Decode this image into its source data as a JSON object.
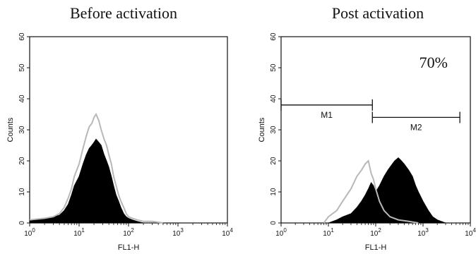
{
  "chart_data": [
    {
      "type": "area",
      "title": "Before activation",
      "xlabel": "FL1-H",
      "ylabel": "Counts",
      "x_scale": "log",
      "xlim": [
        1,
        10000
      ],
      "ylim": [
        0,
        60
      ],
      "x_ticks": [
        "10^0",
        "10^1",
        "10^2",
        "10^3",
        "10^4"
      ],
      "y_ticks": [
        "0",
        "10",
        "20",
        "30",
        "40",
        "50",
        "60"
      ],
      "series": [
        {
          "style": "black-filled",
          "x": [
            1,
            2,
            3,
            4,
            5,
            6,
            7,
            8,
            10,
            12,
            14,
            16,
            18,
            20,
            22,
            25,
            28,
            32,
            36,
            40,
            45,
            50,
            56,
            63,
            70,
            80,
            90,
            100,
            120,
            150,
            200
          ],
          "y": [
            1,
            1.5,
            2,
            2.5,
            4,
            6,
            9,
            12,
            15,
            19,
            22,
            24,
            25,
            26,
            27,
            26,
            25,
            22,
            20,
            18,
            15,
            12,
            9,
            7,
            5,
            3,
            2,
            1.5,
            1,
            0.5,
            0
          ]
        },
        {
          "style": "gray-outline",
          "x": [
            1,
            2,
            3,
            4,
            5,
            6,
            7,
            8,
            10,
            12,
            14,
            16,
            18,
            20,
            22,
            25,
            28,
            32,
            36,
            40,
            45,
            50,
            56,
            63,
            70,
            80,
            90,
            100,
            120,
            150,
            200,
            300,
            500
          ],
          "y": [
            1,
            1.5,
            2,
            3,
            5,
            8,
            11,
            15,
            19,
            24,
            28,
            31,
            32,
            34,
            35,
            33,
            30,
            27,
            25,
            22,
            19,
            15,
            12,
            9,
            7,
            5,
            3,
            2,
            1.5,
            1,
            0.5,
            0.5,
            0
          ]
        }
      ]
    },
    {
      "type": "area",
      "title": "Post activation",
      "xlabel": "FL1-H",
      "ylabel": "Counts",
      "x_scale": "log",
      "xlim": [
        1,
        10000
      ],
      "ylim": [
        0,
        60
      ],
      "x_ticks": [
        "10^0",
        "10^1",
        "10^2",
        "10^3",
        "10^4"
      ],
      "y_ticks": [
        "0",
        "10",
        "20",
        "30",
        "40",
        "50",
        "60"
      ],
      "annotation": "70%",
      "gates": [
        {
          "name": "M1",
          "x_from": 1,
          "x_to": 85,
          "y": 38
        },
        {
          "name": "M2",
          "x_from": 85,
          "x_to": 6000,
          "y": 34
        }
      ],
      "series": [
        {
          "style": "black-filled",
          "x": [
            10,
            15,
            20,
            30,
            40,
            50,
            60,
            70,
            80,
            90,
            100,
            120,
            150,
            180,
            200,
            250,
            300,
            350,
            400,
            500,
            600,
            700,
            800,
            1000,
            1300,
            1600,
            2000,
            3000
          ],
          "y": [
            0,
            1,
            2,
            3,
            5,
            7,
            9,
            11,
            13,
            12,
            10,
            12,
            15,
            17,
            18,
            20,
            21,
            20,
            19,
            17,
            15,
            12,
            10,
            7,
            4,
            2,
            1,
            0
          ]
        },
        {
          "style": "gray-outline",
          "x": [
            8,
            10,
            15,
            20,
            30,
            40,
            50,
            60,
            70,
            80,
            90,
            100,
            120,
            150,
            200,
            300,
            500,
            800
          ],
          "y": [
            0,
            2,
            4,
            7,
            11,
            15,
            17,
            19,
            20,
            16,
            14,
            11,
            7,
            4,
            2,
            1,
            0.5,
            0
          ]
        }
      ]
    }
  ],
  "titles": {
    "left": "Before activation",
    "right": "Post activation"
  },
  "colors": {
    "fill": "#000000",
    "outline": "#b8b8b8",
    "axis": "#111111"
  }
}
